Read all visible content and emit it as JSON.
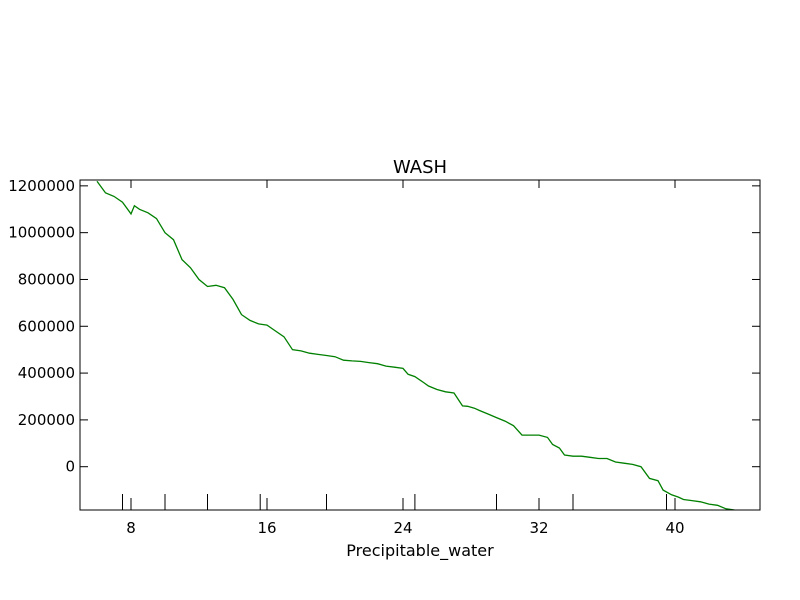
{
  "chart_data": {
    "type": "line",
    "title": "WASH",
    "xlabel": "Precipitable_water",
    "ylabel": "",
    "xlim": [
      5.0,
      45.0
    ],
    "ylim": [
      -185000,
      1225000
    ],
    "xticks": [
      8,
      16,
      24,
      32,
      40
    ],
    "yticks": [
      0,
      200000,
      400000,
      600000,
      800000,
      1000000,
      1200000
    ],
    "extra_xticks": [
      7.5,
      10.0,
      12.5,
      15.6,
      19.5,
      24.7,
      29.5,
      34.0,
      39.5
    ],
    "grid": false,
    "series": [
      {
        "color": "#008000",
        "x": [
          6.0,
          6.5,
          7.0,
          7.5,
          8.0,
          8.2,
          8.5,
          9.0,
          9.5,
          10.0,
          10.5,
          11.0,
          11.5,
          12.0,
          12.5,
          13.0,
          13.5,
          14.0,
          14.5,
          15.0,
          15.5,
          16.0,
          16.5,
          17.0,
          17.5,
          18.0,
          18.5,
          19.0,
          19.5,
          20.0,
          20.5,
          21.0,
          21.5,
          22.0,
          22.5,
          23.0,
          23.5,
          24.0,
          24.3,
          24.7,
          25.2,
          25.5,
          26.0,
          26.5,
          27.0,
          27.5,
          27.8,
          28.2,
          28.5,
          29.0,
          29.5,
          30.0,
          30.5,
          31.0,
          31.5,
          32.0,
          32.5,
          32.8,
          33.2,
          33.5,
          34.0,
          34.5,
          35.0,
          35.5,
          36.0,
          36.5,
          37.0,
          37.5,
          38.0,
          38.5,
          39.0,
          39.3,
          39.8,
          40.2,
          40.5,
          41.0,
          41.5,
          42.0,
          42.5,
          43.0,
          43.5
        ],
        "y": [
          1220000,
          1170000,
          1155000,
          1130000,
          1080000,
          1115000,
          1100000,
          1085000,
          1060000,
          1000000,
          970000,
          885000,
          850000,
          800000,
          770000,
          775000,
          765000,
          715000,
          650000,
          625000,
          610000,
          605000,
          580000,
          555000,
          500000,
          495000,
          485000,
          480000,
          475000,
          470000,
          455000,
          452000,
          450000,
          445000,
          440000,
          430000,
          425000,
          420000,
          395000,
          385000,
          360000,
          345000,
          330000,
          320000,
          315000,
          260000,
          258000,
          250000,
          240000,
          225000,
          210000,
          195000,
          175000,
          135000,
          135000,
          135000,
          125000,
          95000,
          80000,
          50000,
          45000,
          45000,
          40000,
          35000,
          35000,
          20000,
          15000,
          10000,
          0,
          -50000,
          -60000,
          -100000,
          -120000,
          -130000,
          -140000,
          -145000,
          -150000,
          -160000,
          -165000,
          -180000,
          -185000
        ]
      }
    ]
  }
}
